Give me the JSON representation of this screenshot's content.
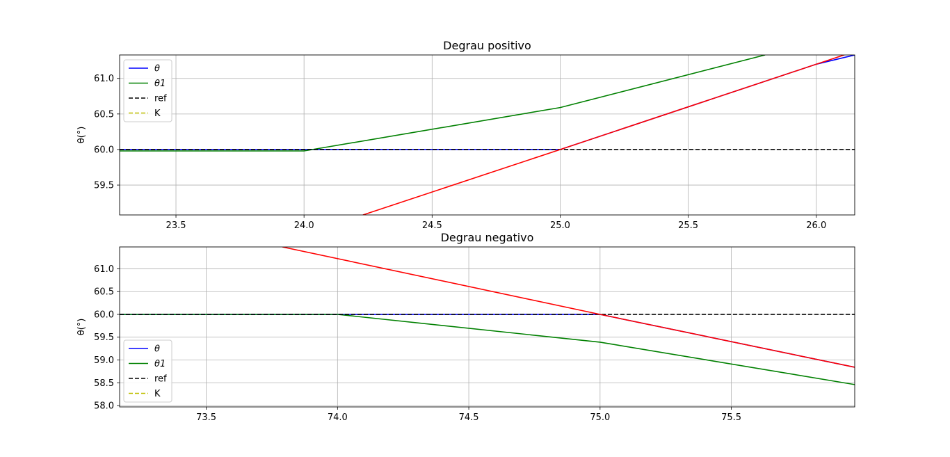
{
  "chart_data": [
    {
      "type": "line",
      "title": "Degrau positivo",
      "xlabel": "",
      "ylabel": "θ(°)",
      "xlim": [
        23.28,
        26.15
      ],
      "ylim": [
        59.08,
        61.33
      ],
      "xticks": [
        "23.5",
        "24.0",
        "24.5",
        "25.0",
        "25.5",
        "26.0"
      ],
      "yticks": [
        "59.5",
        "60.0",
        "60.5",
        "61.0"
      ],
      "grid": true,
      "legend_position": "upper-left",
      "legend": [
        {
          "label": "θ",
          "color": "#0000ff",
          "dash": false
        },
        {
          "label": "θ1",
          "color": "#008000",
          "dash": false
        },
        {
          "label": "ref",
          "color": "#000000",
          "dash": true
        },
        {
          "label": "K",
          "color": "#bfbf00",
          "dash": true
        }
      ],
      "series": [
        {
          "name": "θ",
          "color": "#0000ff",
          "dash": false,
          "x": [
            23.28,
            25.0,
            26.0,
            26.15
          ],
          "y": [
            60.0,
            60.0,
            61.2,
            61.33
          ]
        },
        {
          "name": "θ1",
          "color": "#008000",
          "dash": false,
          "x": [
            23.28,
            24.0,
            25.0,
            25.8
          ],
          "y": [
            59.98,
            59.98,
            60.59,
            61.33
          ]
        },
        {
          "name": "ref",
          "color": "#000000",
          "dash": true,
          "x": [
            23.28,
            26.15
          ],
          "y": [
            60.0,
            60.0
          ]
        },
        {
          "name": "K",
          "color": "#bfbf00",
          "dash": true,
          "x": [],
          "y": []
        },
        {
          "color": "#ff0000",
          "dash": false,
          "x": [
            24.23,
            25.0,
            26.15
          ],
          "y": [
            59.08,
            60.0,
            61.38
          ]
        }
      ]
    },
    {
      "type": "line",
      "title": "Degrau negativo",
      "xlabel": "",
      "ylabel": "θ(°)",
      "xlim": [
        73.17,
        75.97
      ],
      "ylim": [
        57.97,
        61.48
      ],
      "xticks": [
        "73.5",
        "74.0",
        "74.5",
        "75.0",
        "75.5"
      ],
      "yticks": [
        "58.0",
        "58.5",
        "59.0",
        "59.5",
        "60.0",
        "60.5",
        "61.0"
      ],
      "grid": true,
      "legend_position": "lower-left",
      "legend": [
        {
          "label": "θ",
          "color": "#0000ff",
          "dash": false
        },
        {
          "label": "θ1",
          "color": "#008000",
          "dash": false
        },
        {
          "label": "ref",
          "color": "#000000",
          "dash": true
        },
        {
          "label": "K",
          "color": "#bfbf00",
          "dash": true
        }
      ],
      "series": [
        {
          "name": "θ",
          "color": "#0000ff",
          "dash": false,
          "x": [
            73.17,
            75.0,
            75.97
          ],
          "y": [
            60.0,
            60.0,
            58.84
          ]
        },
        {
          "name": "θ1",
          "color": "#008000",
          "dash": false,
          "x": [
            73.17,
            74.0,
            75.0,
            75.97
          ],
          "y": [
            60.0,
            60.0,
            59.39,
            58.46
          ]
        },
        {
          "name": "ref",
          "color": "#000000",
          "dash": true,
          "x": [
            73.17,
            75.97
          ],
          "y": [
            60.0,
            60.0
          ]
        },
        {
          "name": "K",
          "color": "#bfbf00",
          "dash": true,
          "x": [],
          "y": []
        },
        {
          "color": "#ff0000",
          "dash": false,
          "x": [
            73.79,
            75.0,
            75.97
          ],
          "y": [
            61.48,
            60.0,
            58.84
          ]
        }
      ]
    }
  ]
}
